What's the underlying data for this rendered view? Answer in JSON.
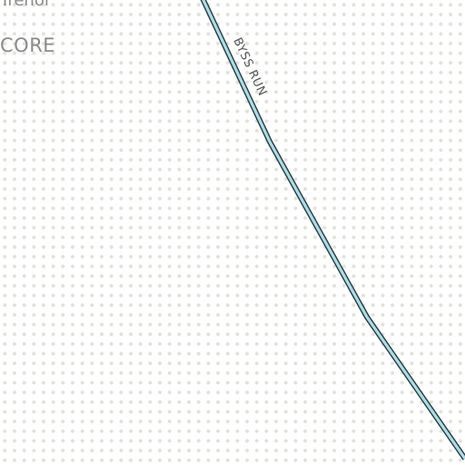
{
  "map": {
    "background_color": "#ffffff",
    "dot_color": "#e2e1da",
    "stream_color": "#a8dde8",
    "stream_outline_color": "#2a3a3a",
    "labels": {
      "place_partial_top": "Trenol",
      "place_core": "CORE",
      "stream_name": "BYSS RUN"
    }
  }
}
